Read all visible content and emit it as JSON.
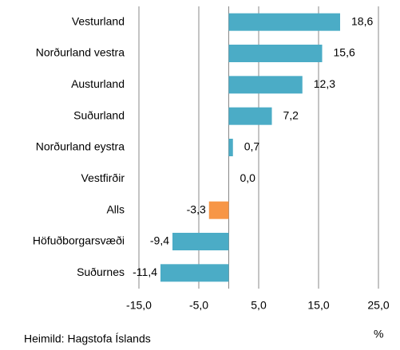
{
  "chart_data": {
    "type": "barh",
    "categories": [
      "Vesturland",
      "Norðurland vestra",
      "Austurland",
      "Suðurland",
      "Norðurland eystra",
      "Vestfirðir",
      "Alls",
      "Höfuðborgarsvæði",
      "Suðurnes"
    ],
    "values": [
      18.6,
      15.6,
      12.3,
      7.2,
      0.7,
      0.0,
      -3.3,
      -9.4,
      -11.4
    ],
    "value_labels": [
      "18,6",
      "15,6",
      "12,3",
      "7,2",
      "0,7",
      "0,0",
      "-3,3",
      "-9,4",
      "-11,4"
    ],
    "colors": [
      "#4bacc6",
      "#4bacc6",
      "#4bacc6",
      "#4bacc6",
      "#4bacc6",
      "#4bacc6",
      "#f79646",
      "#4bacc6",
      "#4bacc6"
    ],
    "xlim": [
      -15,
      25
    ],
    "xticks": [
      {
        "value": -15,
        "label": "-15,0"
      },
      {
        "value": -5,
        "label": "-5,0"
      },
      {
        "value": 5,
        "label": "5,0"
      },
      {
        "value": 15,
        "label": "15,0"
      },
      {
        "value": 25,
        "label": "25,0"
      }
    ],
    "grid": true,
    "unit_label": "%",
    "source": "Heimild: Hagstofa Íslands"
  }
}
